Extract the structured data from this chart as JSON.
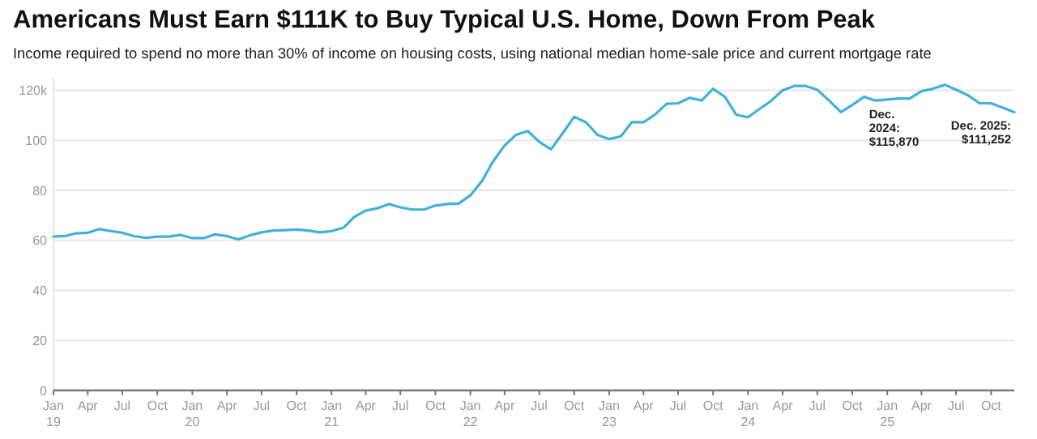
{
  "chart_data": {
    "type": "line",
    "title": "Americans Must Earn $111K to Buy Typical U.S. Home, Down From Peak",
    "subtitle": "Income required to spend no more than 30% of income on housing costs, using national median home-sale price and current mortgage rate",
    "x": [
      "2019-01",
      "2019-02",
      "2019-03",
      "2019-04",
      "2019-05",
      "2019-06",
      "2019-07",
      "2019-08",
      "2019-09",
      "2019-10",
      "2019-11",
      "2019-12",
      "2020-01",
      "2020-02",
      "2020-03",
      "2020-04",
      "2020-05",
      "2020-06",
      "2020-07",
      "2020-08",
      "2020-09",
      "2020-10",
      "2020-11",
      "2020-12",
      "2021-01",
      "2021-02",
      "2021-03",
      "2021-04",
      "2021-05",
      "2021-06",
      "2021-07",
      "2021-08",
      "2021-09",
      "2021-10",
      "2021-11",
      "2021-12",
      "2022-01",
      "2022-02",
      "2022-03",
      "2022-04",
      "2022-05",
      "2022-06",
      "2022-07",
      "2022-08",
      "2022-09",
      "2022-10",
      "2022-11",
      "2022-12",
      "2023-01",
      "2023-02",
      "2023-03",
      "2023-04",
      "2023-05",
      "2023-06",
      "2023-07",
      "2023-08",
      "2023-09",
      "2023-10",
      "2023-11",
      "2023-12",
      "2024-01",
      "2024-02",
      "2024-03",
      "2024-04",
      "2024-05",
      "2024-06",
      "2024-07",
      "2024-08",
      "2024-09",
      "2024-10",
      "2024-11",
      "2024-12",
      "2025-01",
      "2025-02",
      "2025-03",
      "2025-04",
      "2025-05",
      "2025-06",
      "2025-07",
      "2025-08",
      "2025-09",
      "2025-10",
      "2025-11",
      "2025-12"
    ],
    "series": [
      {
        "color": "#3fb1da",
        "values": [
          61.5,
          61.7,
          62.8,
          63,
          64.5,
          63.7,
          63,
          61.7,
          61,
          61.5,
          61.5,
          62.2,
          60.9,
          60.9,
          62.4,
          61.7,
          60.4,
          62,
          63.2,
          63.9,
          64.1,
          64.3,
          63.9,
          63.2,
          63.7,
          65,
          69.3,
          71.9,
          72.8,
          74.5,
          73.2,
          72.3,
          72.3,
          73.9,
          74.5,
          74.7,
          78,
          83.8,
          91.4,
          97.9,
          102.2,
          103.7,
          99.4,
          96.4,
          102.9,
          109.4,
          107.2,
          102.2,
          100.5,
          101.6,
          107.2,
          107.2,
          110.2,
          114.6,
          114.8,
          117,
          115.9,
          120.6,
          117.4,
          110.2,
          109.2,
          112.6,
          115.7,
          120,
          121.7,
          121.7,
          120.2,
          115.9,
          111.3,
          114.1,
          117.4,
          115.87,
          116.3,
          116.7,
          116.7,
          119.6,
          120.6,
          122.2,
          120.2,
          118,
          114.8,
          114.8,
          113,
          111.252
        ]
      }
    ],
    "xlim": [
      "2019-01",
      "2025-12"
    ],
    "xticks": [
      {
        "value": "2019-01",
        "label": "Jan\n19"
      },
      {
        "value": "2019-04",
        "label": "Apr"
      },
      {
        "value": "2019-07",
        "label": "Jul"
      },
      {
        "value": "2019-10",
        "label": "Oct"
      },
      {
        "value": "2020-01",
        "label": "Jan\n20"
      },
      {
        "value": "2020-04",
        "label": "Apr"
      },
      {
        "value": "2020-07",
        "label": "Jul"
      },
      {
        "value": "2020-10",
        "label": "Oct"
      },
      {
        "value": "2021-01",
        "label": "Jan\n21"
      },
      {
        "value": "2021-04",
        "label": "Apr"
      },
      {
        "value": "2021-07",
        "label": "Jul"
      },
      {
        "value": "2021-10",
        "label": "Oct"
      },
      {
        "value": "2022-01",
        "label": "Jan\n22"
      },
      {
        "value": "2022-04",
        "label": "Apr"
      },
      {
        "value": "2022-07",
        "label": "Jul"
      },
      {
        "value": "2022-10",
        "label": "Oct"
      },
      {
        "value": "2023-01",
        "label": "Jan\n23"
      },
      {
        "value": "2023-04",
        "label": "Apr"
      },
      {
        "value": "2023-07",
        "label": "Jul"
      },
      {
        "value": "2023-10",
        "label": "Oct"
      },
      {
        "value": "2024-01",
        "label": "Jan\n24"
      },
      {
        "value": "2024-04",
        "label": "Apr"
      },
      {
        "value": "2024-07",
        "label": "Jul"
      },
      {
        "value": "2024-10",
        "label": "Oct"
      },
      {
        "value": "2025-01",
        "label": "Jan\n25"
      },
      {
        "value": "2025-04",
        "label": "Apr"
      },
      {
        "value": "2025-07",
        "label": "Jul"
      },
      {
        "value": "2025-10",
        "label": "Oct"
      }
    ],
    "ylim": [
      0,
      125
    ],
    "yticks": [
      0,
      20,
      40,
      60,
      80,
      100,
      {
        "value": 120,
        "label": "120k"
      }
    ],
    "grid": "y",
    "annotations": [
      {
        "text": "Dec.\n2024:\n$115,870",
        "x": "2024-12",
        "y": 115.87
      },
      {
        "text": "Dec. 2025:\n$111,252",
        "x": "2025-12",
        "y": 111.252
      }
    ]
  }
}
